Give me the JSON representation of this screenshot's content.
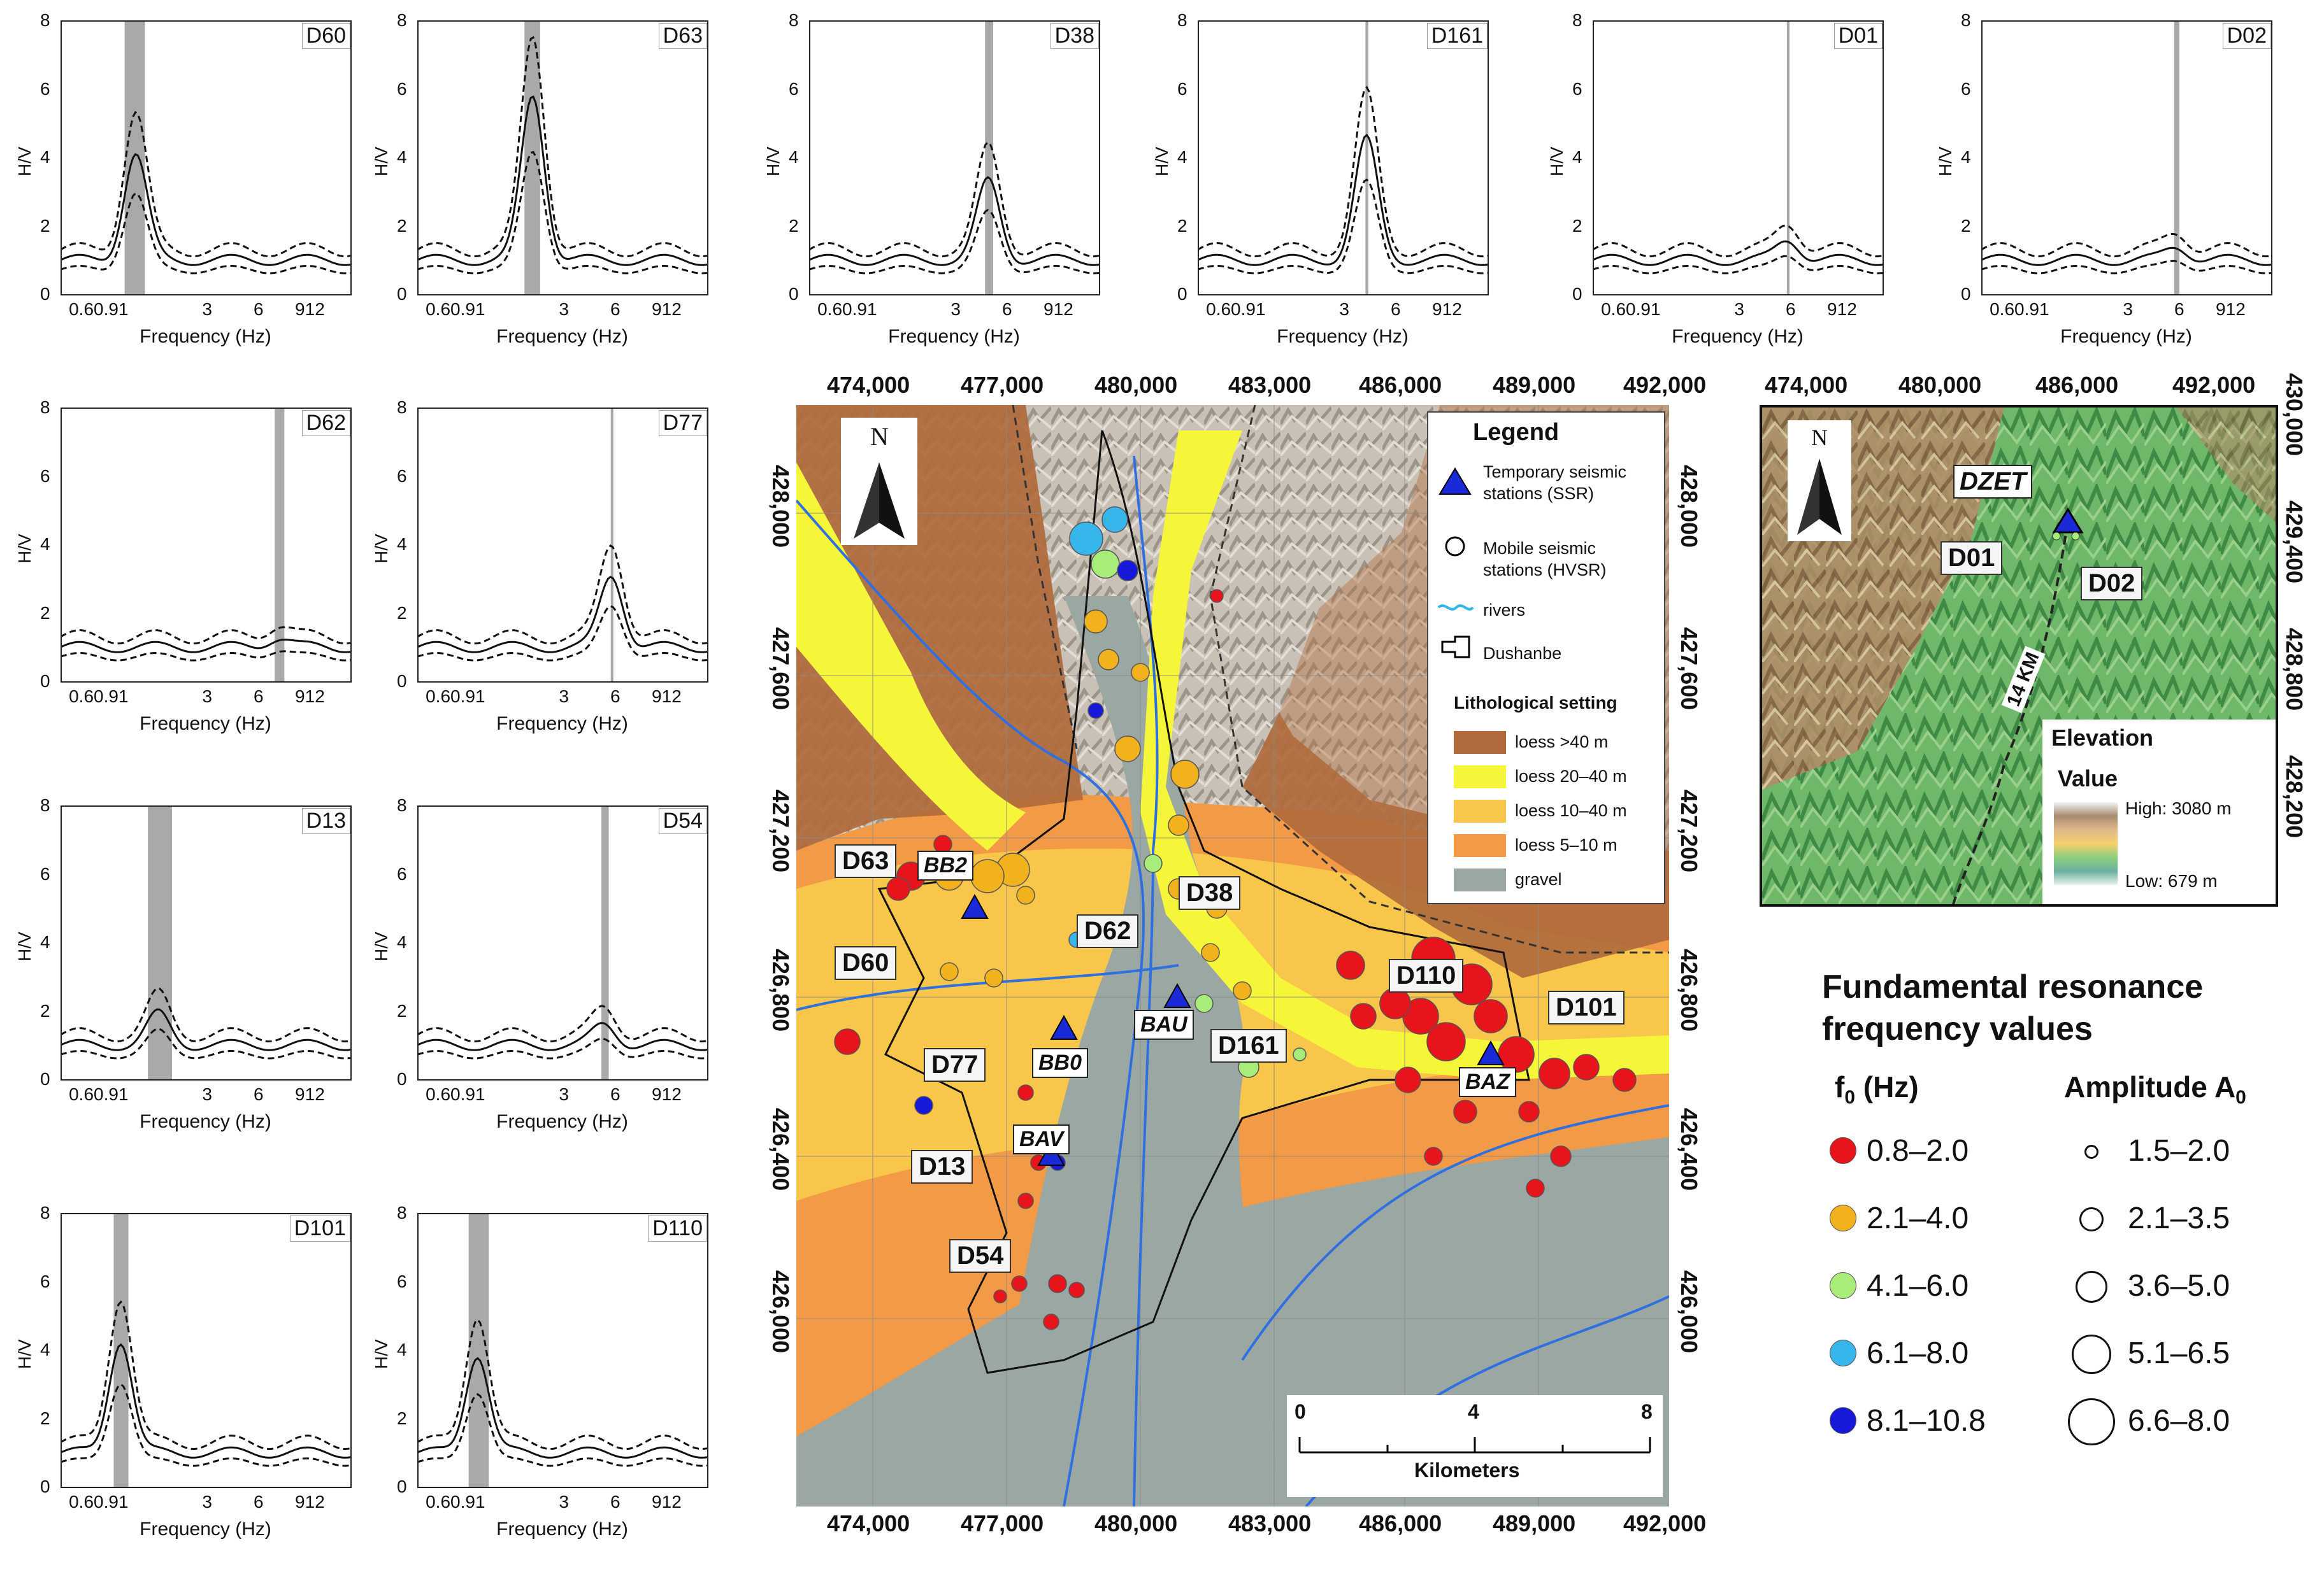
{
  "hv_panels": [
    {
      "id": "D60",
      "peak": 4.1,
      "peak_freq": 1.1,
      "band": [
        0.95,
        1.25
      ]
    },
    {
      "id": "D63",
      "peak": 5.8,
      "peak_freq": 1.9,
      "band": [
        1.7,
        2.1
      ]
    },
    {
      "id": "D38",
      "peak": 3.3,
      "peak_freq": 4.5,
      "band": [
        4.3,
        4.8
      ]
    },
    {
      "id": "D161",
      "peak": 4.5,
      "peak_freq": 3.9,
      "band": [
        3.85,
        4.0
      ]
    },
    {
      "id": "D01",
      "peak": 1.6,
      "peak_freq": 5.6,
      "band": [
        5.5,
        5.7
      ]
    },
    {
      "id": "D02",
      "peak": 1.4,
      "peak_freq": 5.6,
      "band": [
        5.4,
        5.8
      ]
    },
    {
      "id": "D62",
      "peak": 1.3,
      "peak_freq": 7.6,
      "band": [
        7.2,
        8.2
      ]
    },
    {
      "id": "D77",
      "peak": 3.1,
      "peak_freq": 5.5,
      "band": [
        5.45,
        5.55
      ]
    },
    {
      "id": "D13",
      "peak": 1.9,
      "peak_freq": 1.5,
      "band": [
        1.3,
        1.8
      ]
    },
    {
      "id": "D54",
      "peak": 1.6,
      "peak_freq": 5.0,
      "band": [
        4.8,
        5.3
      ]
    },
    {
      "id": "D101",
      "peak": 4.3,
      "peak_freq": 0.9,
      "band": [
        0.82,
        1.0
      ]
    },
    {
      "id": "D110",
      "peak": 3.9,
      "peak_freq": 0.9,
      "band": [
        0.8,
        1.05
      ]
    }
  ],
  "hv_axis": {
    "ylabel": "H/V",
    "xlabel": "Frequency (Hz)",
    "yticks": [
      "0",
      "2",
      "4",
      "6",
      "8"
    ],
    "xticks": [
      "0.60.91",
      "3",
      "6",
      "912"
    ]
  },
  "main_map": {
    "x_coords": [
      "474,000",
      "477,000",
      "480,000",
      "483,000",
      "486,000",
      "489,000",
      "492,000"
    ],
    "y_coords": [
      "428,000",
      "427,600",
      "427,200",
      "426,800",
      "426,400",
      "426,000"
    ],
    "north": "N",
    "legend": {
      "title": "Legend",
      "items": [
        {
          "label": "Temporary seismic stations (SSR)",
          "symbol": "triangle-icon"
        },
        {
          "label": "Mobile seismic stations (HVSR)",
          "symbol": "circle-icon"
        },
        {
          "label": "rivers",
          "symbol": "river-line-icon"
        },
        {
          "label": "Dushanbe",
          "symbol": "outline-polygon-icon"
        }
      ],
      "litho_title": "Lithological setting",
      "litho": [
        {
          "label": "loess >40 m",
          "color": "#b06a3c"
        },
        {
          "label": "loess 20–40 m",
          "color": "#f5f53a"
        },
        {
          "label": "loess 10–40 m",
          "color": "#f7c64a"
        },
        {
          "label": "loess 5–10 m",
          "color": "#f29a45"
        },
        {
          "label": "gravel",
          "color": "#9aa7a3"
        }
      ]
    },
    "station_labels": [
      "D63",
      "D60",
      "D62",
      "D38",
      "D77",
      "D161",
      "D13",
      "D54",
      "D110",
      "D101"
    ],
    "ssr_labels": [
      "BB2",
      "BAU",
      "BB0",
      "BAV",
      "BAZ"
    ],
    "scale": {
      "ticks": [
        "0",
        "4",
        "8"
      ],
      "unit": "Kilometers"
    }
  },
  "inset_map": {
    "x_coords": [
      "474,000",
      "480,000",
      "486,000",
      "492,000"
    ],
    "y_coords": [
      "430,000",
      "429,400",
      "428,800",
      "428,200"
    ],
    "north": "N",
    "labels": {
      "dzet": "DZET",
      "d01": "D01",
      "d02": "D02",
      "distance": "14 KM"
    },
    "elevation": {
      "title": "Elevation",
      "value": "Value",
      "high": "High: 3080 m",
      "low": "Low: 679 m"
    }
  },
  "f0_legend": {
    "title_line1": "Fundamental resonance",
    "title_line2": "frequency values",
    "f0_head": "f",
    "f0_sub": "0",
    "f0_unit": " (Hz)",
    "amp_head": "Amplitude A",
    "amp_sub": "0",
    "f0_classes": [
      {
        "label": "0.8–2.0",
        "color": "#e8141c"
      },
      {
        "label": "2.1–4.0",
        "color": "#f2b21e"
      },
      {
        "label": "4.1–6.0",
        "color": "#a8ec7a"
      },
      {
        "label": "6.1–8.0",
        "color": "#36b6ea"
      },
      {
        "label": "8.1–10.8",
        "color": "#1818d8"
      }
    ],
    "amp_classes": [
      "1.5–2.0",
      "2.1–3.5",
      "3.6–5.0",
      "5.1–6.5",
      "6.6–8.0"
    ]
  }
}
